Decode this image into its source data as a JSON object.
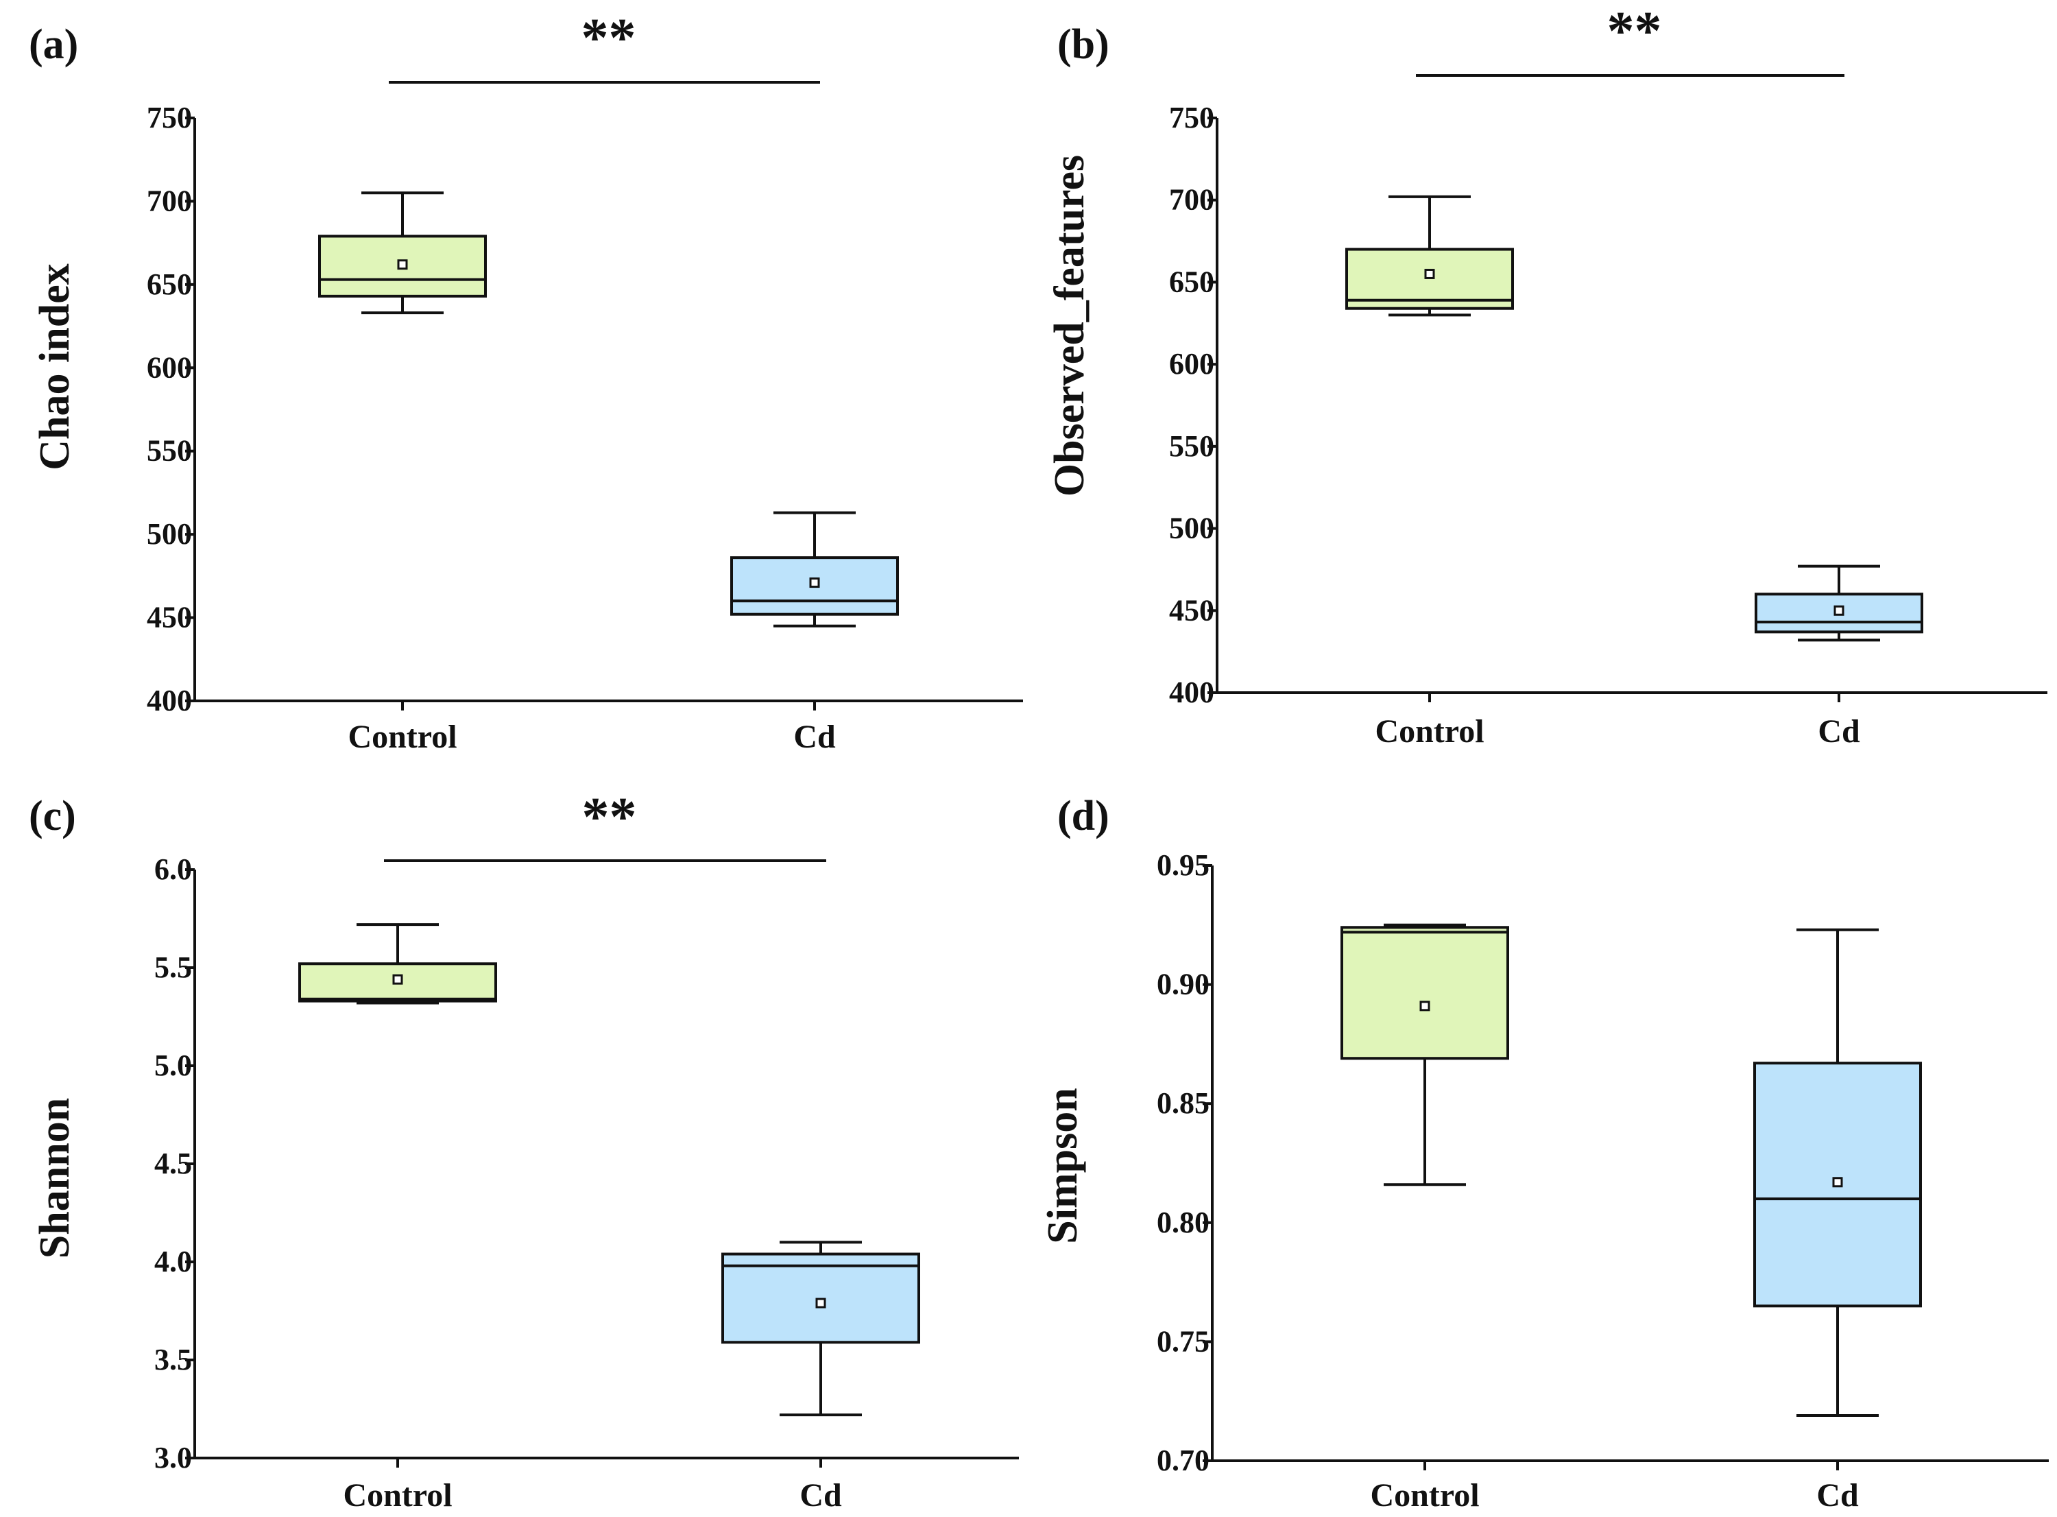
{
  "colors": {
    "control_fill": "#e0f5b9",
    "cd_fill": "#bde3fb",
    "line": "#111111"
  },
  "chart_data": [
    {
      "type": "box",
      "panel_label": "(a)",
      "ylabel": "Chao index",
      "ylim": [
        400,
        750
      ],
      "yticks": [
        "400",
        "450",
        "500",
        "550",
        "600",
        "650",
        "700",
        "750"
      ],
      "categories": [
        "Control",
        "Cd"
      ],
      "boxes": [
        {
          "group": "Control",
          "min": 633,
          "q1": 643,
          "median": 653,
          "q3": 679,
          "max": 705,
          "mean": 662
        },
        {
          "group": "Cd",
          "min": 445,
          "q1": 452,
          "median": 460,
          "q3": 486,
          "max": 513,
          "mean": 471
        }
      ],
      "significance": "**"
    },
    {
      "type": "box",
      "panel_label": "(b)",
      "ylabel": "Observed_features",
      "ylim": [
        400,
        750
      ],
      "yticks": [
        "400",
        "450",
        "500",
        "550",
        "600",
        "650",
        "700",
        "750"
      ],
      "categories": [
        "Control",
        "Cd"
      ],
      "boxes": [
        {
          "group": "Control",
          "min": 630,
          "q1": 634,
          "median": 639,
          "q3": 670,
          "max": 702,
          "mean": 655
        },
        {
          "group": "Cd",
          "min": 432,
          "q1": 437,
          "median": 443,
          "q3": 460,
          "max": 477,
          "mean": 450
        }
      ],
      "significance": "**"
    },
    {
      "type": "box",
      "panel_label": "(c)",
      "ylabel": "Shannon",
      "ylim": [
        3.0,
        6.0
      ],
      "yticks": [
        "3.0",
        "3.5",
        "4.0",
        "4.5",
        "5.0",
        "5.5",
        "6.0"
      ],
      "categories": [
        "Control",
        "Cd"
      ],
      "boxes": [
        {
          "group": "Control",
          "min": 5.32,
          "q1": 5.33,
          "median": 5.34,
          "q3": 5.52,
          "max": 5.72,
          "mean": 5.44
        },
        {
          "group": "Cd",
          "min": 3.22,
          "q1": 3.59,
          "median": 3.98,
          "q3": 4.04,
          "max": 4.1,
          "mean": 3.79
        }
      ],
      "significance": "**"
    },
    {
      "type": "box",
      "panel_label": "(d)",
      "ylabel": "Simpson",
      "ylim": [
        0.7,
        0.95
      ],
      "yticks": [
        "0.70",
        "0.75",
        "0.80",
        "0.85",
        "0.90",
        "0.95"
      ],
      "categories": [
        "Control",
        "Cd"
      ],
      "boxes": [
        {
          "group": "Control",
          "min": 0.816,
          "q1": 0.869,
          "median": 0.922,
          "q3": 0.924,
          "max": 0.925,
          "mean": 0.891
        },
        {
          "group": "Cd",
          "min": 0.719,
          "q1": 0.765,
          "median": 0.81,
          "q3": 0.867,
          "max": 0.923,
          "mean": 0.817
        }
      ],
      "significance": ""
    }
  ]
}
